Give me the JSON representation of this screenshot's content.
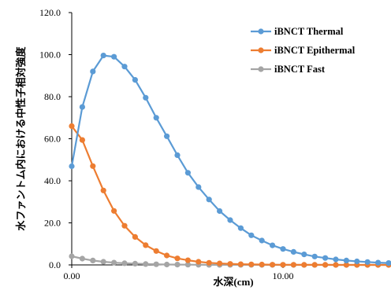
{
  "chart_data": {
    "type": "line",
    "title": "",
    "xlabel": "水深(cm)",
    "ylabel": "水ファントム内における中性子相対強度",
    "xlim": [
      0,
      15
    ],
    "ylim": [
      0,
      120
    ],
    "x_ticks": [
      0,
      10
    ],
    "x_tick_labels": [
      "0.00",
      "10.00"
    ],
    "y_ticks": [
      0,
      20,
      40,
      60,
      80,
      100,
      120
    ],
    "y_tick_labels": [
      "0.0",
      "20.0",
      "40.0",
      "60.0",
      "80.0",
      "100.0",
      "120.0"
    ],
    "grid": false,
    "legend_position": "top-right",
    "x": [
      0.0,
      0.5,
      1.0,
      1.5,
      2.0,
      2.5,
      3.0,
      3.5,
      4.0,
      4.5,
      5.0,
      5.5,
      6.0,
      6.5,
      7.0,
      7.5,
      8.0,
      8.5,
      9.0,
      9.5,
      10.0,
      10.5,
      11.0,
      11.5,
      12.0,
      12.5,
      13.0,
      13.5,
      14.0,
      14.5,
      15.0
    ],
    "series": [
      {
        "name": "iBNCT Thermal",
        "color": "#5b9bd5",
        "values": [
          46.9,
          75.1,
          92.0,
          99.6,
          99.0,
          94.3,
          88.0,
          79.5,
          70.0,
          61.2,
          52.2,
          43.8,
          37.0,
          31.1,
          25.6,
          21.3,
          17.5,
          14.1,
          11.6,
          9.3,
          7.6,
          6.2,
          5.0,
          4.0,
          3.3,
          2.6,
          2.1,
          1.7,
          1.4,
          1.1,
          0.9
        ]
      },
      {
        "name": "iBNCT Epithermal",
        "color": "#ed7d31",
        "values": [
          66.0,
          59.4,
          47.0,
          35.4,
          25.7,
          18.6,
          13.3,
          9.4,
          6.6,
          4.5,
          3.1,
          2.2,
          1.5,
          1.0,
          0.7,
          0.5,
          0.35,
          0.25,
          0.17,
          0.12,
          0.08,
          0.06,
          0.04,
          0.03,
          0.02,
          0.015,
          0.01,
          0.01,
          0.01,
          0.0,
          0.0
        ]
      },
      {
        "name": "iBNCT Fast",
        "color": "#a5a5a5",
        "values": [
          4.1,
          3.0,
          2.1,
          1.5,
          1.1,
          0.8,
          0.6,
          0.4,
          0.3,
          0.2,
          0.15,
          0.1,
          0.07,
          0.05,
          0.04,
          0.03,
          0.02,
          0.02,
          0.01,
          0.01,
          0.01,
          0.0,
          0.0,
          0.0,
          0.0,
          0.0,
          0.0,
          0.0,
          0.0,
          0.0,
          0.0
        ]
      }
    ]
  }
}
